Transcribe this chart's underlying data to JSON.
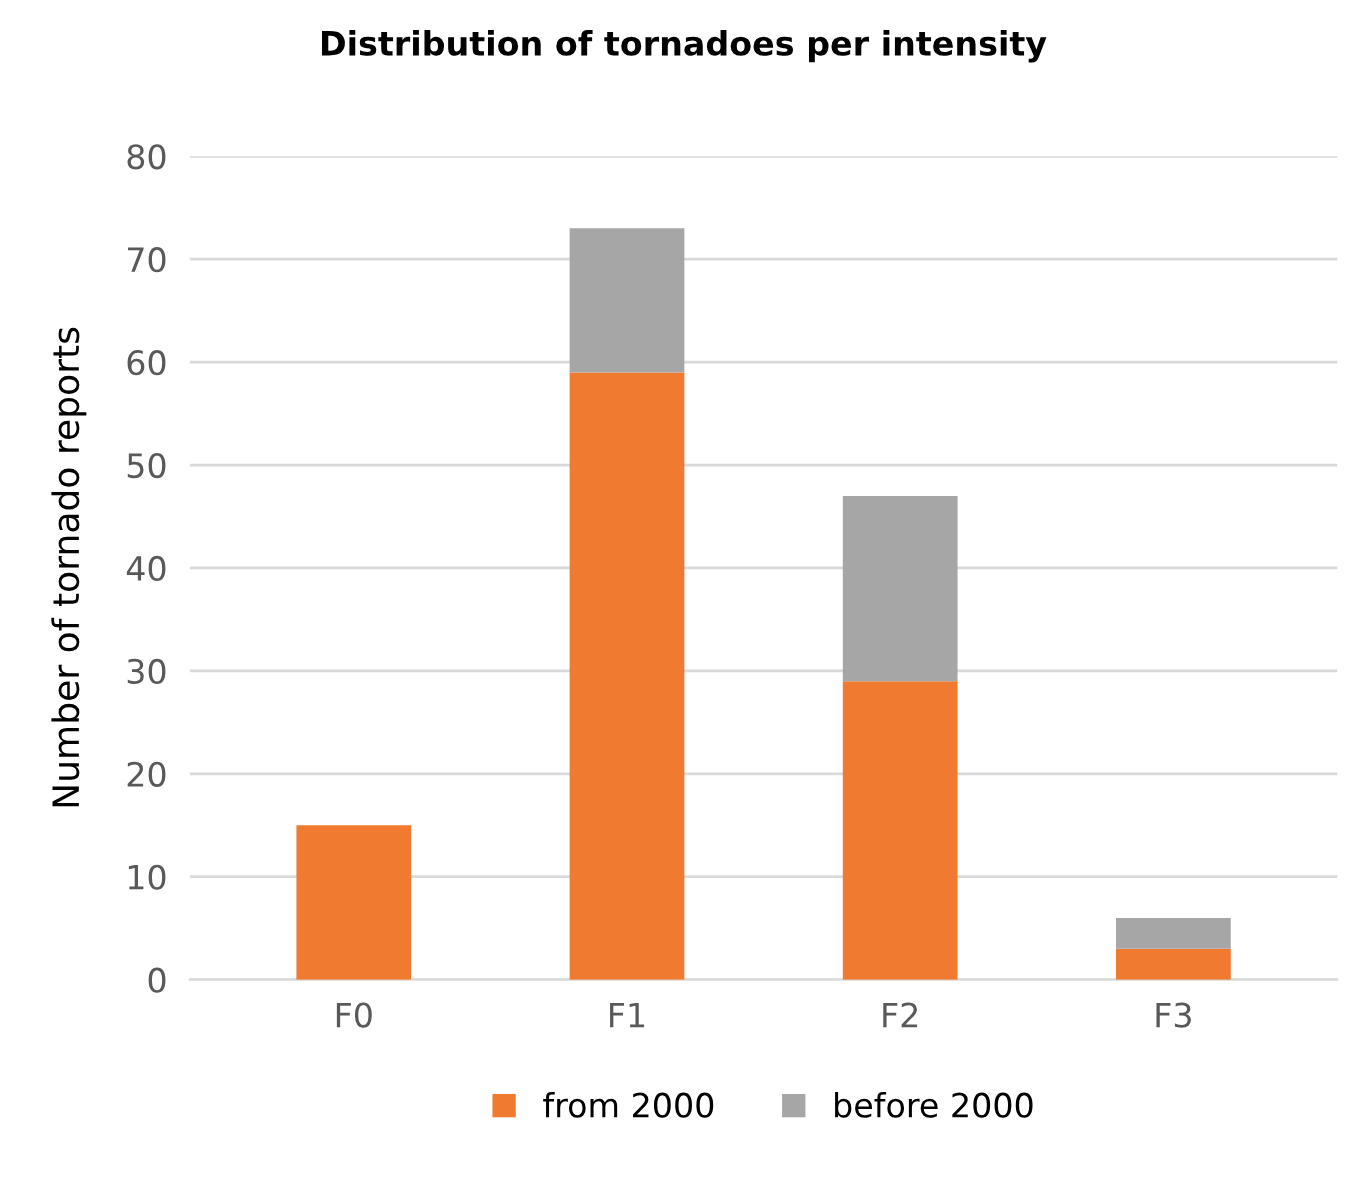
{
  "chart_data": {
    "type": "bar",
    "title": "Distribution of tornadoes per intensity",
    "ylabel": "Number of tornado reports",
    "categories": [
      "F0",
      "F1",
      "F2",
      "F3"
    ],
    "series": [
      {
        "name": "from 2000",
        "color": "#f07a30",
        "values": [
          15,
          59,
          29,
          3
        ]
      },
      {
        "name": "before 2000",
        "color": "#a6a6a6",
        "values": [
          0,
          14,
          18,
          3
        ]
      }
    ],
    "stacked": true,
    "ylim": [
      0,
      80
    ],
    "yticks": [
      0,
      10,
      20,
      30,
      40,
      50,
      60,
      70,
      80
    ],
    "grid": "y",
    "legend": "bottom"
  }
}
